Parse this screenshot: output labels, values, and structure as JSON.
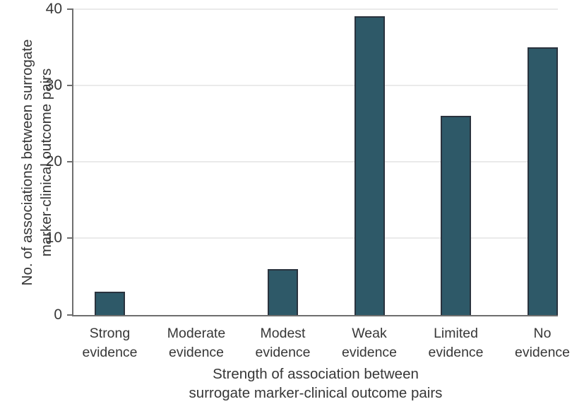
{
  "chart_data": {
    "type": "bar",
    "categories": [
      "Strong evidence",
      "Moderate evidence",
      "Modest evidence",
      "Weak evidence",
      "Limited evidence",
      "No evidence"
    ],
    "values": [
      3,
      0,
      6,
      39,
      26,
      35
    ],
    "title": "",
    "xlabel": "Strength of association between surrogate marker-clinical outcome pairs",
    "xlabel_lines": [
      "Strength of association between",
      "surrogate marker-clinical outcome pairs"
    ],
    "ylabel": "No. of associations between surrogate marker-clinical outcome pairs",
    "ylabel_lines": [
      "No. of associations between surrogate",
      "marker-clinical outcome pairs"
    ],
    "ylim": [
      0,
      40
    ],
    "yticks": [
      0,
      10,
      20,
      30,
      40
    ],
    "grid": true,
    "legend": "none",
    "colors": {
      "bar_fill": "#2e5968",
      "bar_border": "#2a333e",
      "axis": "#6e6e6e",
      "gridline": "#eaeaea",
      "text": "#373737",
      "background": "#ffffff"
    }
  }
}
